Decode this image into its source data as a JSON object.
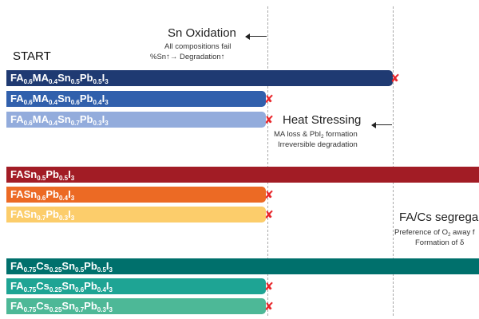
{
  "start_label": "START",
  "stages": {
    "sn_oxidation": {
      "title": "Sn Oxidation",
      "line1": "All compositions fail",
      "line2": "%Sn↑→ Degradation↑"
    },
    "heat_stressing": {
      "title": "Heat Stressing",
      "line1_a": "MA loss & PbI",
      "line1_sub": "2",
      "line1_b": " formation",
      "line2": "Irreversible degradation"
    },
    "facs_segregation": {
      "title": "FA/Cs segrega",
      "line1_a": "Preference of O",
      "line1_sub": "2",
      "line1_b": " away f",
      "line2": "Formation of δ"
    }
  },
  "bars": [
    {
      "parts": [
        [
          "FA",
          ""
        ],
        [
          "0.6",
          "s"
        ],
        [
          "MA",
          ""
        ],
        [
          "0.4",
          "s"
        ],
        [
          "Sn",
          ""
        ],
        [
          "0.5",
          "s"
        ],
        [
          "Pb",
          ""
        ],
        [
          "0.5",
          "s"
        ],
        [
          "I",
          ""
        ],
        [
          "3",
          "s"
        ]
      ],
      "color": "#1f3a72",
      "fails": true
    },
    {
      "parts": [
        [
          "FA",
          ""
        ],
        [
          "0.6",
          "s"
        ],
        [
          "MA",
          ""
        ],
        [
          "0.4",
          "s"
        ],
        [
          "Sn",
          ""
        ],
        [
          "0.6",
          "s"
        ],
        [
          "Pb",
          ""
        ],
        [
          "0.4",
          "s"
        ],
        [
          "I",
          ""
        ],
        [
          "3",
          "s"
        ]
      ],
      "color": "#3160ac",
      "fails": true
    },
    {
      "parts": [
        [
          "FA",
          ""
        ],
        [
          "0.6",
          "s"
        ],
        [
          "MA",
          ""
        ],
        [
          "0.4",
          "s"
        ],
        [
          "Sn",
          ""
        ],
        [
          "0.7",
          "s"
        ],
        [
          "Pb",
          ""
        ],
        [
          "0.3",
          "s"
        ],
        [
          "I",
          ""
        ],
        [
          "3",
          "s"
        ]
      ],
      "color": "#93acdc",
      "fails": true
    },
    {
      "parts": [
        [
          "FASn",
          ""
        ],
        [
          "0.5",
          "s"
        ],
        [
          "Pb",
          ""
        ],
        [
          "0.5",
          "s"
        ],
        [
          "I",
          ""
        ],
        [
          "3",
          "s"
        ]
      ],
      "color": "#a21c25",
      "fails": false
    },
    {
      "parts": [
        [
          "FASn",
          ""
        ],
        [
          "0.6",
          "s"
        ],
        [
          "Pb",
          ""
        ],
        [
          "0.4",
          "s"
        ],
        [
          "I",
          ""
        ],
        [
          "3",
          "s"
        ]
      ],
      "color": "#ec6a24",
      "fails": true
    },
    {
      "parts": [
        [
          "FASn",
          ""
        ],
        [
          "0.7",
          "s"
        ],
        [
          "Pb",
          ""
        ],
        [
          "0.3",
          "s"
        ],
        [
          "I",
          ""
        ],
        [
          "3",
          "s"
        ]
      ],
      "color": "#fccd6b",
      "fails": true
    },
    {
      "parts": [
        [
          "FA",
          ""
        ],
        [
          "0.75",
          "s"
        ],
        [
          "Cs",
          ""
        ],
        [
          "0.25",
          "s"
        ],
        [
          "Sn",
          ""
        ],
        [
          "0.5",
          "s"
        ],
        [
          "Pb",
          ""
        ],
        [
          "0.5",
          "s"
        ],
        [
          "I",
          ""
        ],
        [
          "3",
          "s"
        ]
      ],
      "color": "#00706c",
      "fails": false
    },
    {
      "parts": [
        [
          "FA",
          ""
        ],
        [
          "0.75",
          "s"
        ],
        [
          "Cs",
          ""
        ],
        [
          "0.25",
          "s"
        ],
        [
          "Sn",
          ""
        ],
        [
          "0.6",
          "s"
        ],
        [
          "Pb",
          ""
        ],
        [
          "0.4",
          "s"
        ],
        [
          "I",
          ""
        ],
        [
          "3",
          "s"
        ]
      ],
      "color": "#1ea494",
      "fails": true
    },
    {
      "parts": [
        [
          "FA",
          ""
        ],
        [
          "0.75",
          "s"
        ],
        [
          "Cs",
          ""
        ],
        [
          "0.25",
          "s"
        ],
        [
          "Sn",
          ""
        ],
        [
          "0.7",
          "s"
        ],
        [
          "Pb",
          ""
        ],
        [
          "0.3",
          "s"
        ],
        [
          "I",
          ""
        ],
        [
          "3",
          "s"
        ]
      ],
      "color": "#4db897",
      "fails": true
    }
  ],
  "fail_marker": "✘",
  "colors": {
    "fail": "#e8262b",
    "dash": "#a9a9a9"
  }
}
